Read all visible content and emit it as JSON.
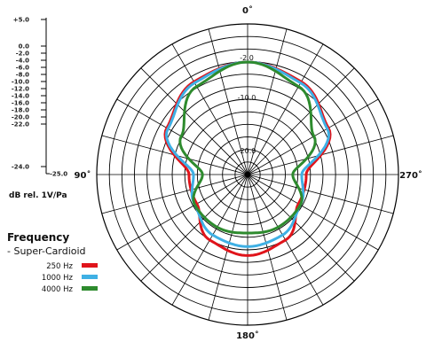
{
  "chart_data": {
    "type": "polar",
    "units_label": "dB rel. 1V/Pa",
    "scale_ticks": [
      "+5.0",
      "0.0",
      "-2.0",
      "-4.0",
      "-6.0",
      "-8.0",
      "-10.0",
      "-12.0",
      "-14.0",
      "-16.0",
      "-18.0",
      "-20.0",
      "-22.0",
      "-24.0",
      "-25.0"
    ],
    "r_range_db": [
      -25,
      0
    ],
    "angle_labels": {
      "top": "0˚",
      "right": "270˚",
      "left": "90˚",
      "bottom": "180˚"
    },
    "ring_labels": [
      "-2.0",
      "-10.0",
      "-20.0"
    ],
    "legend": {
      "title": "Frequency",
      "subtitle": "- Super-Cardioid",
      "position": "left"
    },
    "angles_deg": [
      0,
      30,
      60,
      90,
      120,
      150,
      180
    ],
    "series": [
      {
        "name": "250 Hz",
        "color": "#e0141b",
        "values_db": [
          0.0,
          -1.2,
          -4.3,
          -12.0,
          -12.0,
          -8.2,
          -7.0
        ]
      },
      {
        "name": "1000 Hz",
        "color": "#3fb0e4",
        "values_db": [
          0.0,
          -1.5,
          -4.6,
          -13.0,
          -11.5,
          -9.5,
          -9.0
        ]
      },
      {
        "name": "4000 Hz",
        "color": "#2e8b2e",
        "values_db": [
          0.0,
          -2.4,
          -8.0,
          -15.0,
          -11.5,
          -11.5,
          -12.0
        ]
      }
    ]
  }
}
